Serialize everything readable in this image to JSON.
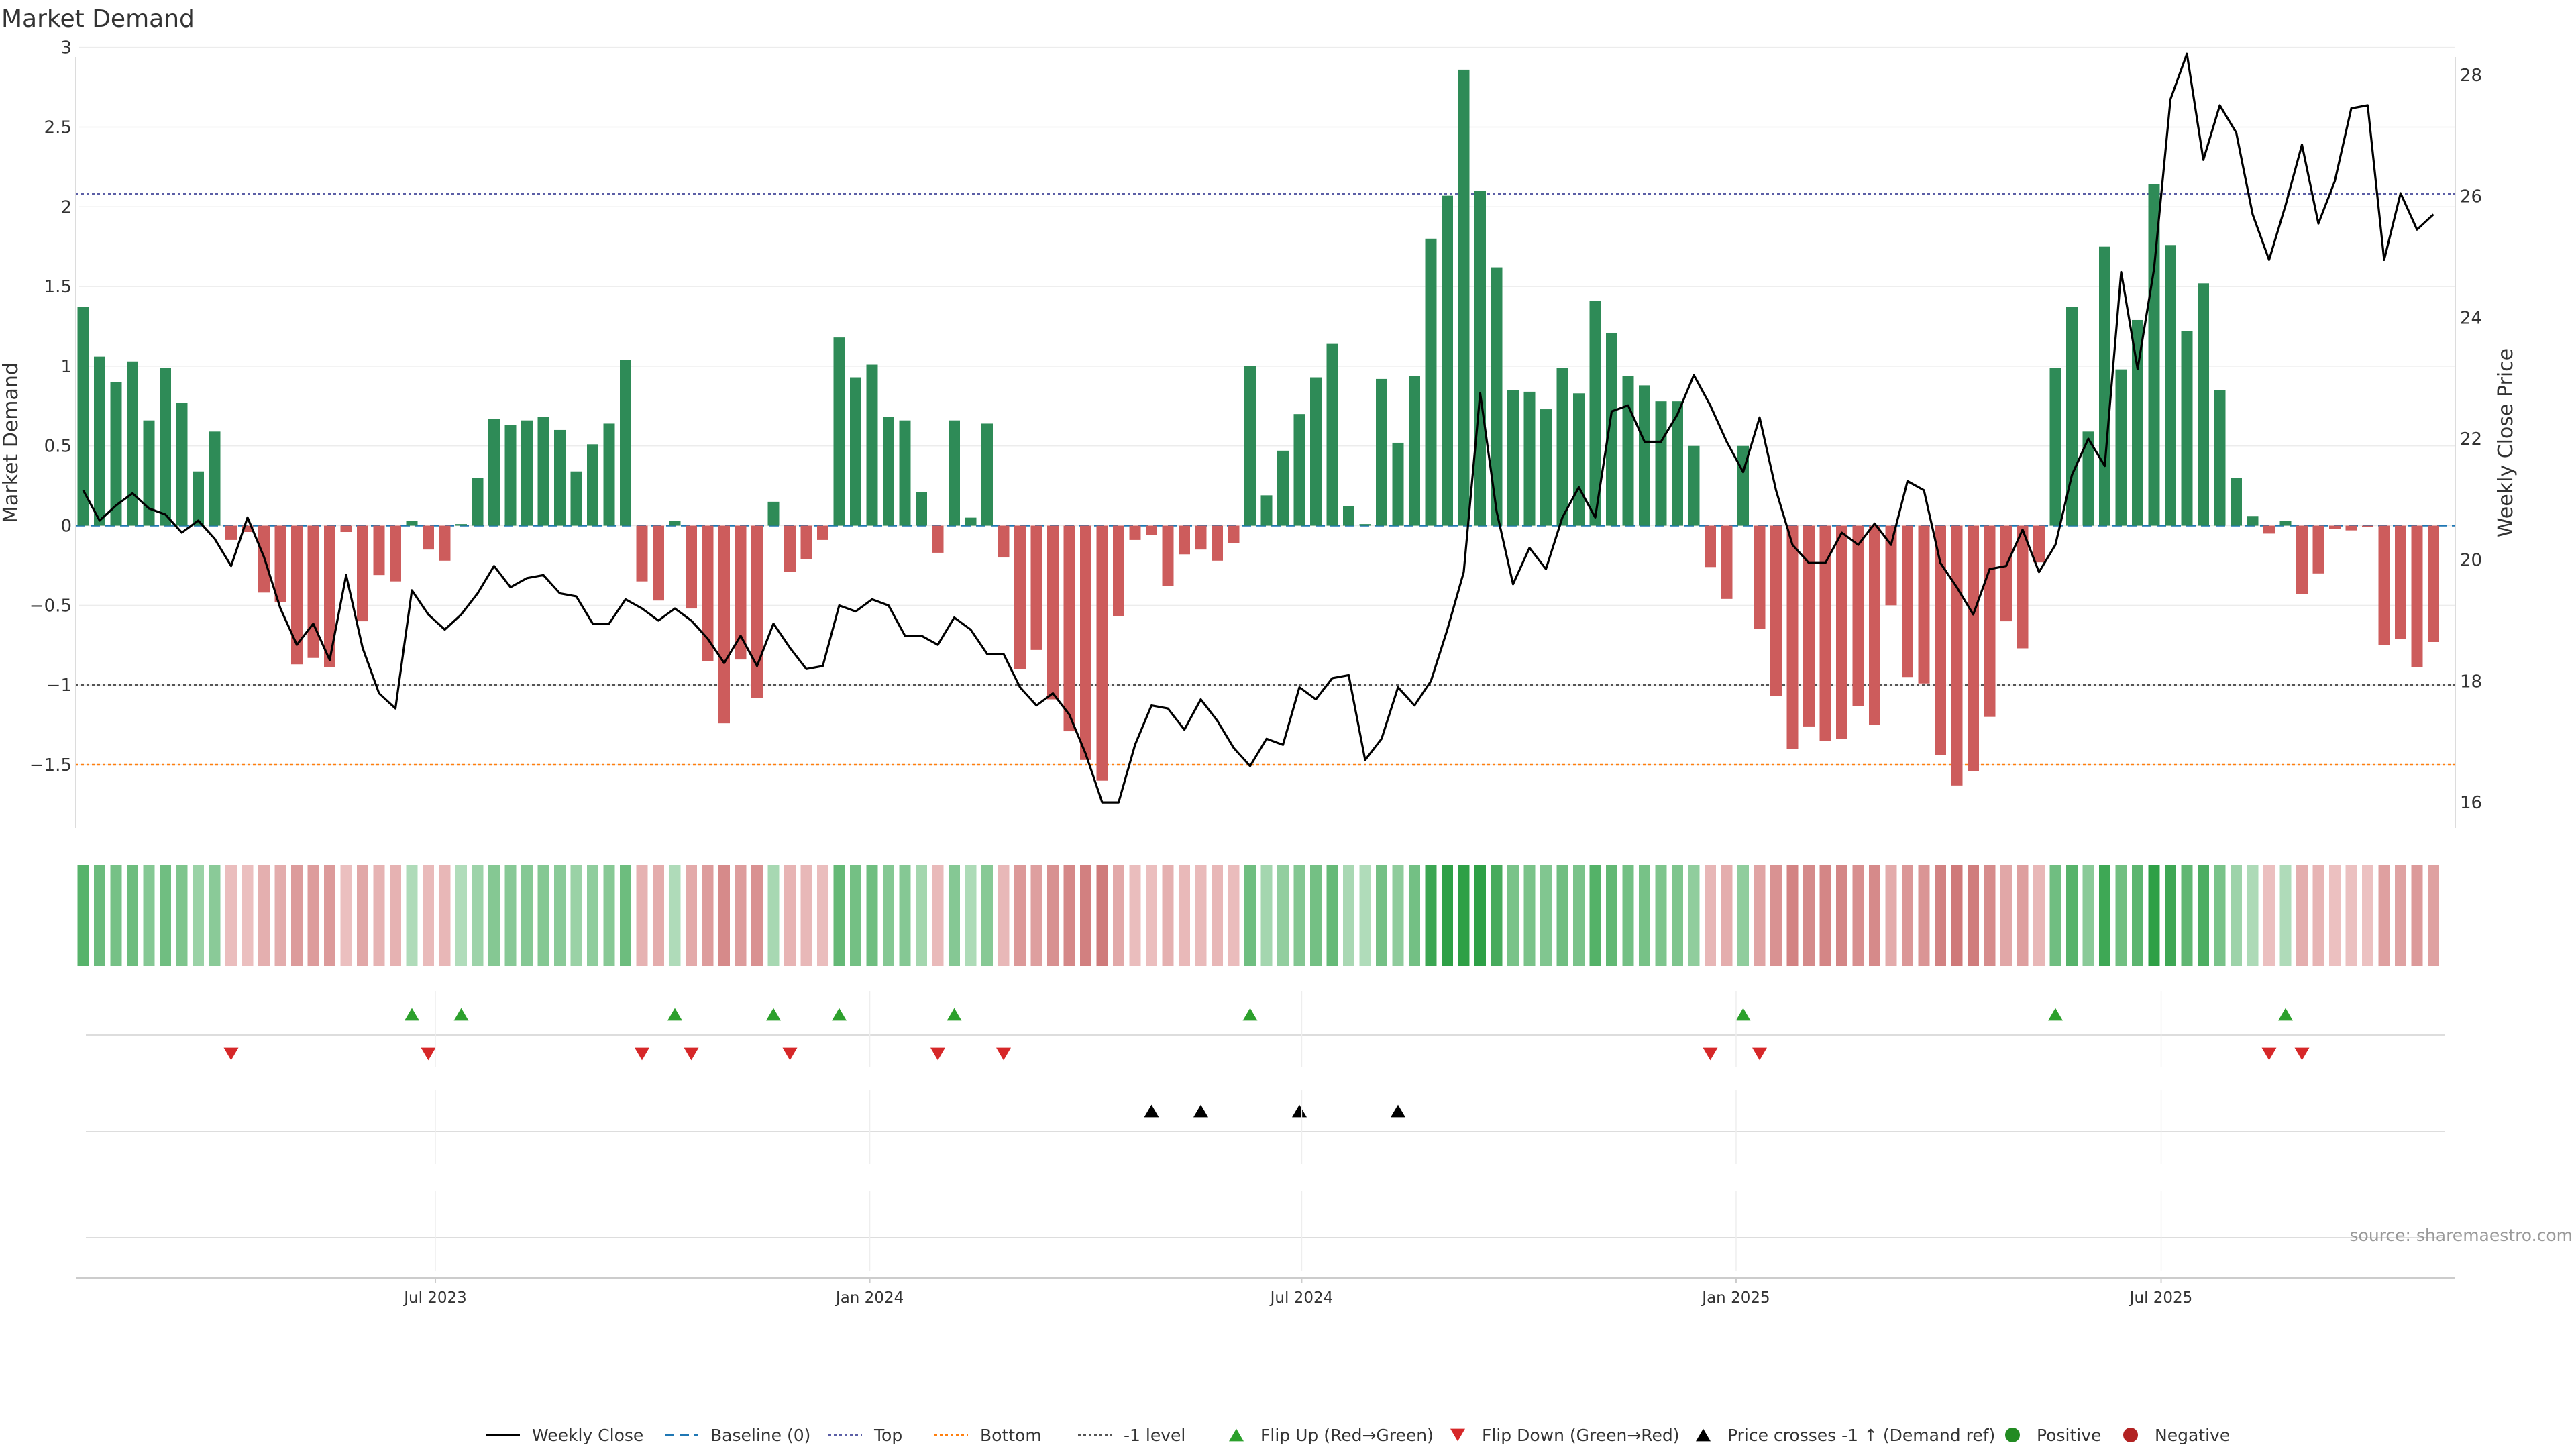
{
  "chart_data": {
    "type": "bar+line",
    "title": "Market Demand",
    "ylabel": "Market Demand",
    "y2label": "Weekly Close Price",
    "ylim": [
      -1.9,
      3.15
    ],
    "y2lim": [
      15.57,
      28.85
    ],
    "yticks": [
      "3",
      "2.5",
      "2",
      "1.5",
      "1",
      "0.5",
      "0",
      "−0.5",
      "−1",
      "−1.5"
    ],
    "y2ticks": [
      "28",
      "26",
      "24",
      "22",
      "20",
      "18",
      "16"
    ],
    "xticks": [
      "Jul 2023",
      "Jan 2024",
      "Jul 2024",
      "Jan 2025",
      "Jul 2025"
    ],
    "xtick_weeks": [
      21.43,
      47.86,
      74.14,
      100.57,
      126.43
    ],
    "levels": {
      "top": 2.08,
      "bottom": -1.5,
      "minus_one": -1.0
    },
    "demand": [
      1.37,
      1.06,
      0.9,
      1.03,
      0.66,
      0.99,
      0.77,
      0.34,
      0.59,
      -0.09,
      -0.04,
      -0.42,
      -0.48,
      -0.87,
      -0.83,
      -0.89,
      -0.04,
      -0.6,
      -0.31,
      -0.35,
      0.03,
      -0.15,
      -0.22,
      0.01,
      0.3,
      0.67,
      0.63,
      0.66,
      0.68,
      0.6,
      0.34,
      0.51,
      0.64,
      1.04,
      -0.35,
      -0.47,
      0.03,
      -0.52,
      -0.85,
      -1.24,
      -0.84,
      -1.08,
      0.15,
      -0.29,
      -0.21,
      -0.09,
      1.18,
      0.93,
      1.01,
      0.68,
      0.66,
      0.21,
      -0.17,
      0.66,
      0.05,
      0.64,
      -0.2,
      -0.9,
      -0.78,
      -1.09,
      -1.29,
      -1.47,
      -1.6,
      -0.57,
      -0.09,
      -0.06,
      -0.38,
      -0.18,
      -0.15,
      -0.22,
      -0.11,
      1.0,
      0.19,
      0.47,
      0.7,
      0.93,
      1.14,
      0.12,
      0.01,
      0.92,
      0.52,
      0.94,
      1.8,
      2.07,
      2.86,
      2.1,
      1.62,
      0.85,
      0.84,
      0.73,
      0.99,
      0.83,
      1.41,
      1.21,
      0.94,
      0.88,
      0.78,
      0.78,
      0.5,
      -0.26,
      -0.46,
      0.5,
      -0.65,
      -1.07,
      -1.4,
      -1.26,
      -1.35,
      -1.34,
      -1.13,
      -1.25,
      -0.5,
      -0.95,
      -0.99,
      -1.44,
      -1.63,
      -1.54,
      -1.2,
      -0.6,
      -0.77,
      -0.23,
      0.99,
      1.37,
      0.59,
      1.75,
      0.98,
      1.29,
      2.14,
      1.76,
      1.22,
      1.52,
      0.85,
      0.3,
      0.06,
      -0.05,
      0.03,
      -0.43,
      -0.3,
      -0.02,
      -0.03,
      -0.01,
      -0.75,
      -0.71,
      -0.89,
      -0.73
    ],
    "series": [
      {
        "name": "Weekly Close",
        "values": [
          21.15,
          20.65,
          20.9,
          21.1,
          20.85,
          20.75,
          20.45,
          20.65,
          20.35,
          19.9,
          20.7,
          20.05,
          19.2,
          18.6,
          18.95,
          18.35,
          19.75,
          18.55,
          17.8,
          17.55,
          19.5,
          19.1,
          18.85,
          19.1,
          19.45,
          19.9,
          19.55,
          19.7,
          19.75,
          19.45,
          19.4,
          18.95,
          18.95,
          19.35,
          19.2,
          19.0,
          19.2,
          19.0,
          18.7,
          18.3,
          18.75,
          18.25,
          18.95,
          18.55,
          18.2,
          18.25,
          19.25,
          19.15,
          19.35,
          19.25,
          18.75,
          18.75,
          18.6,
          19.05,
          18.85,
          18.45,
          18.45,
          17.9,
          17.6,
          17.8,
          17.45,
          16.8,
          16.0,
          16.0,
          16.95,
          17.6,
          17.55,
          17.2,
          17.7,
          17.35,
          16.9,
          16.6,
          17.05,
          16.95,
          17.9,
          17.7,
          18.05,
          18.1,
          16.7,
          17.05,
          17.9,
          17.6,
          18.0,
          18.85,
          19.8,
          22.75,
          20.8,
          19.6,
          20.2,
          19.85,
          20.7,
          21.2,
          20.7,
          22.45,
          22.55,
          21.95,
          21.95,
          22.4,
          23.05,
          22.55,
          21.95,
          21.45,
          22.35,
          21.15,
          20.25,
          19.95,
          19.95,
          20.45,
          20.25,
          20.6,
          20.25,
          21.3,
          21.15,
          19.95,
          19.55,
          19.1,
          19.85,
          19.9,
          20.5,
          19.8,
          20.25,
          21.4,
          22.0,
          21.55,
          24.75,
          23.15,
          24.8,
          27.6,
          28.35,
          26.6,
          27.5,
          27.05,
          25.7,
          24.95,
          25.85,
          26.85,
          25.55,
          26.25,
          27.45,
          27.5,
          24.95,
          26.05,
          25.45,
          25.7
        ]
      }
    ],
    "legend_position": "bottom-center",
    "legend": [
      {
        "label": "Weekly Close",
        "marker": "line",
        "color": "#000000"
      },
      {
        "label": "Baseline (0)",
        "marker": "dash",
        "color": "#1f77b4"
      },
      {
        "label": "Top",
        "marker": "dot",
        "color": "#5b5ea6"
      },
      {
        "label": "Bottom",
        "marker": "dot",
        "color": "#ff7f0e"
      },
      {
        "label": "-1 level",
        "marker": "dot",
        "color": "#555555"
      },
      {
        "label": "Flip Up (Red→Green)",
        "marker": "triangle-up",
        "color": "#2ca02c"
      },
      {
        "label": "Flip Down (Green→Red)",
        "marker": "triangle-down",
        "color": "#d62728"
      },
      {
        "label": "Price crosses -1 ↑ (Demand ref)",
        "marker": "triangle-up",
        "color": "#000000"
      },
      {
        "label": "Positive",
        "marker": "circle",
        "color": "#228b22"
      },
      {
        "label": "Negative",
        "marker": "circle",
        "color": "#b22222"
      }
    ],
    "source": "source: sharemaestro.com",
    "colors": {
      "positive": "#2e8b57",
      "negative": "#cd5c5c",
      "price": "#000000",
      "flip_up": "#2ca02c",
      "flip_down": "#d62728"
    }
  }
}
